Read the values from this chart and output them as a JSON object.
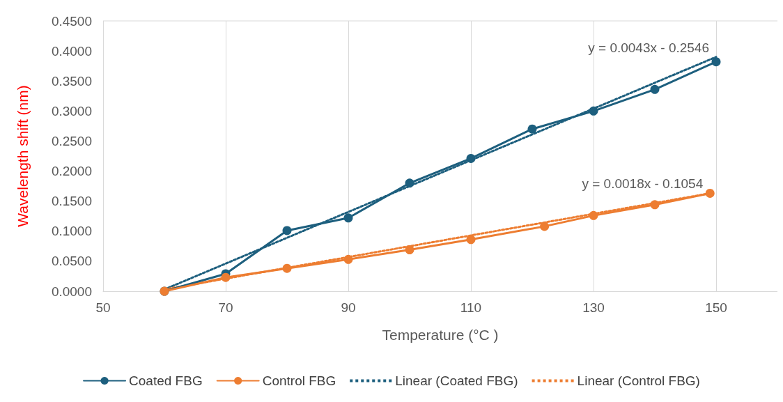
{
  "chart_data": {
    "type": "line",
    "xlabel": "Temperature (°C )",
    "ylabel": "Wavelength shift (nm)",
    "series": [
      {
        "name": "Coated FBG",
        "color": "#1d5f7e",
        "x": [
          60,
          70,
          80,
          90,
          100,
          110,
          120,
          130,
          140,
          150
        ],
        "values": [
          0.0,
          0.029,
          0.101,
          0.122,
          0.18,
          0.221,
          0.27,
          0.3,
          0.336,
          0.382
        ],
        "marker": "circle",
        "line_style": "solid"
      },
      {
        "name": "Control FBG",
        "color": "#ed7d31",
        "x": [
          60,
          70,
          80,
          90,
          100,
          110,
          122,
          130,
          140,
          149
        ],
        "values": [
          0.0,
          0.023,
          0.038,
          0.053,
          0.069,
          0.086,
          0.108,
          0.126,
          0.144,
          0.163
        ],
        "marker": "circle",
        "line_style": "solid"
      },
      {
        "name": "Linear (Coated FBG)",
        "color": "#1d5f7e",
        "x": [
          60,
          150
        ],
        "values": [
          0.003,
          0.39
        ],
        "marker": "none",
        "line_style": "dotted"
      },
      {
        "name": "Linear (Control FBG)",
        "color": "#ed7d31",
        "x": [
          60,
          149
        ],
        "values": [
          0.003,
          0.163
        ],
        "marker": "none",
        "line_style": "dotted"
      }
    ],
    "annotations": [
      "y = 0.0043x - 0.2546",
      "y = 0.0018x - 0.1054"
    ],
    "xlim": [
      50,
      160
    ],
    "xticks": [
      50,
      70,
      90,
      110,
      130,
      150
    ],
    "ylim": [
      0,
      0.45
    ],
    "yticks": [
      {
        "value": 0,
        "label": "0.0000"
      },
      {
        "value": 0.05,
        "label": "0.0500"
      },
      {
        "value": 0.1,
        "label": "0.1000"
      },
      {
        "value": 0.15,
        "label": "0.1500"
      },
      {
        "value": 0.2,
        "label": "0.2000"
      },
      {
        "value": 0.25,
        "label": "0.2500"
      },
      {
        "value": 0.3,
        "label": "0.3000"
      },
      {
        "value": 0.35,
        "label": "0.3500"
      },
      {
        "value": 0.4,
        "label": "0.4000"
      },
      {
        "value": 0.45,
        "label": "0.4500"
      }
    ],
    "grid": "x",
    "legend": "bottom"
  }
}
